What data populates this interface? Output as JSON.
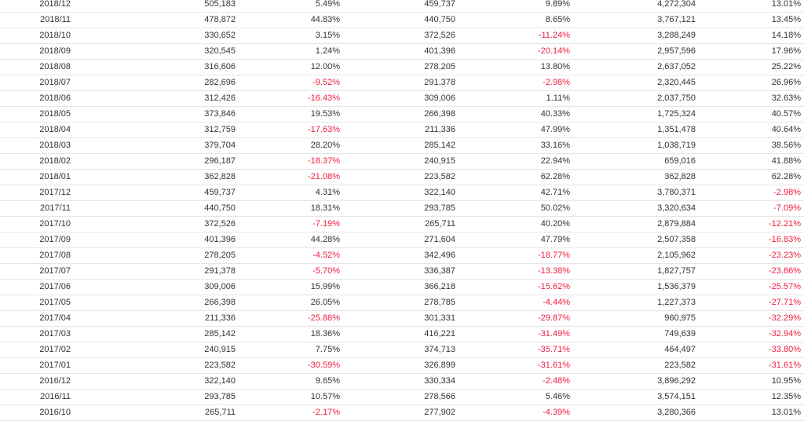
{
  "colors": {
    "text": "#333333",
    "negative": "#ef1d3f",
    "divider": "#e6e6e6"
  },
  "rows": [
    [
      "2018/12",
      "505,183",
      "5.49%",
      "459,737",
      "9.89%",
      "4,272,304",
      "13.01%"
    ],
    [
      "2018/11",
      "478,872",
      "44.83%",
      "440,750",
      "8.65%",
      "3,767,121",
      "13.45%"
    ],
    [
      "2018/10",
      "330,652",
      "3.15%",
      "372,526",
      "-11.24%",
      "3,288,249",
      "14.18%"
    ],
    [
      "2018/09",
      "320,545",
      "1.24%",
      "401,396",
      "-20.14%",
      "2,957,596",
      "17.96%"
    ],
    [
      "2018/08",
      "316,606",
      "12.00%",
      "278,205",
      "13.80%",
      "2,637,052",
      "25.22%"
    ],
    [
      "2018/07",
      "282,696",
      "-9.52%",
      "291,378",
      "-2.98%",
      "2,320,445",
      "26.96%"
    ],
    [
      "2018/06",
      "312,426",
      "-16.43%",
      "309,006",
      "1.11%",
      "2,037,750",
      "32.63%"
    ],
    [
      "2018/05",
      "373,846",
      "19.53%",
      "266,398",
      "40.33%",
      "1,725,324",
      "40.57%"
    ],
    [
      "2018/04",
      "312,759",
      "-17.63%",
      "211,336",
      "47.99%",
      "1,351,478",
      "40.64%"
    ],
    [
      "2018/03",
      "379,704",
      "28.20%",
      "285,142",
      "33.16%",
      "1,038,719",
      "38.56%"
    ],
    [
      "2018/02",
      "296,187",
      "-18.37%",
      "240,915",
      "22.94%",
      "659,016",
      "41.88%"
    ],
    [
      "2018/01",
      "362,828",
      "-21.08%",
      "223,582",
      "62.28%",
      "362,828",
      "62.28%"
    ],
    [
      "2017/12",
      "459,737",
      "4.31%",
      "322,140",
      "42.71%",
      "3,780,371",
      "-2.98%"
    ],
    [
      "2017/11",
      "440,750",
      "18.31%",
      "293,785",
      "50.02%",
      "3,320,634",
      "-7.09%"
    ],
    [
      "2017/10",
      "372,526",
      "-7.19%",
      "265,711",
      "40.20%",
      "2,879,884",
      "-12.21%"
    ],
    [
      "2017/09",
      "401,396",
      "44.28%",
      "271,604",
      "47.79%",
      "2,507,358",
      "-16.83%"
    ],
    [
      "2017/08",
      "278,205",
      "-4.52%",
      "342,496",
      "-18.77%",
      "2,105,962",
      "-23.23%"
    ],
    [
      "2017/07",
      "291,378",
      "-5.70%",
      "336,387",
      "-13.38%",
      "1,827,757",
      "-23.86%"
    ],
    [
      "2017/06",
      "309,006",
      "15.99%",
      "366,218",
      "-15.62%",
      "1,536,379",
      "-25.57%"
    ],
    [
      "2017/05",
      "266,398",
      "26.05%",
      "278,785",
      "-4.44%",
      "1,227,373",
      "-27.71%"
    ],
    [
      "2017/04",
      "211,336",
      "-25.88%",
      "301,331",
      "-29.87%",
      "960,975",
      "-32.29%"
    ],
    [
      "2017/03",
      "285,142",
      "18.36%",
      "416,221",
      "-31.49%",
      "749,639",
      "-32.94%"
    ],
    [
      "2017/02",
      "240,915",
      "7.75%",
      "374,713",
      "-35.71%",
      "464,497",
      "-33.80%"
    ],
    [
      "2017/01",
      "223,582",
      "-30.59%",
      "326,899",
      "-31.61%",
      "223,582",
      "-31.61%"
    ],
    [
      "2016/12",
      "322,140",
      "9.65%",
      "330,334",
      "-2.48%",
      "3,896,292",
      "10.95%"
    ],
    [
      "2016/11",
      "293,785",
      "10.57%",
      "278,566",
      "5.46%",
      "3,574,151",
      "12.35%"
    ],
    [
      "2016/10",
      "265,711",
      "-2.17%",
      "277,902",
      "-4.39%",
      "3,280,366",
      "13.01%"
    ]
  ]
}
